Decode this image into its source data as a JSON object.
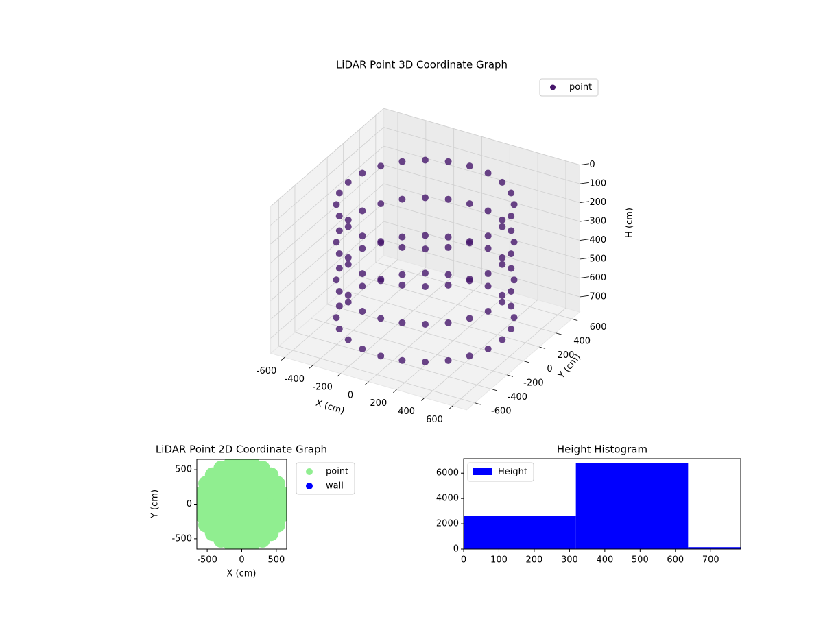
{
  "chart_data": [
    {
      "type": "scatter3d",
      "title": "LiDAR Point 3D Coordinate Graph",
      "xlabel": "X (cm)",
      "ylabel": "Y (cm)",
      "zlabel": "H (cm)",
      "legend": "point",
      "legend_loc": "upper right",
      "color": "#46166b",
      "grid": true,
      "xlim": [
        -700,
        700
      ],
      "ylim": [
        -700,
        700
      ],
      "zlim": [
        0,
        780
      ],
      "z_inverted": true,
      "xticks": [
        -600,
        -400,
        -200,
        0,
        200,
        400,
        600
      ],
      "yticks": [
        -600,
        -400,
        -200,
        0,
        200,
        400,
        600
      ],
      "zticks": [
        0,
        100,
        200,
        300,
        400,
        500,
        600,
        700
      ],
      "x": [
        550,
        531,
        476,
        389,
        275,
        142,
        0,
        -142,
        -275,
        -389,
        -476,
        -531,
        -550,
        -531,
        -476,
        -389,
        -275,
        -142,
        0,
        142,
        275,
        389,
        476,
        531,
        550,
        531,
        476,
        389,
        275,
        142,
        0,
        -142,
        -275,
        -389,
        -476,
        -531,
        -550,
        -531,
        -476,
        -389,
        -275,
        -142,
        0,
        142,
        275,
        389,
        476,
        531,
        550,
        531,
        476,
        389,
        275,
        142,
        0,
        -142,
        -275,
        -389,
        -476,
        -531,
        -550,
        -531,
        -476,
        -389,
        -275,
        -142,
        0,
        142,
        275,
        389,
        476,
        531,
        550,
        531,
        476,
        389,
        275,
        142,
        0,
        -142,
        -275,
        -389,
        -476,
        -531,
        -550,
        -531,
        -476,
        -389,
        -275,
        -142,
        0,
        142,
        275,
        389,
        476,
        531
      ],
      "y": [
        0,
        142,
        275,
        389,
        476,
        531,
        550,
        531,
        476,
        389,
        275,
        142,
        0,
        -142,
        -275,
        -389,
        -476,
        -531,
        -550,
        -531,
        -476,
        -389,
        -275,
        -142,
        0,
        142,
        275,
        389,
        476,
        531,
        550,
        531,
        476,
        389,
        275,
        142,
        0,
        -142,
        -275,
        -389,
        -476,
        -531,
        -550,
        -531,
        -476,
        -389,
        -275,
        -142,
        0,
        142,
        275,
        389,
        476,
        531,
        550,
        531,
        476,
        389,
        275,
        142,
        0,
        -142,
        -275,
        -389,
        -476,
        -531,
        -550,
        -531,
        -476,
        -389,
        -275,
        -142,
        0,
        142,
        275,
        389,
        476,
        531,
        550,
        531,
        476,
        389,
        275,
        142,
        0,
        -142,
        -275,
        -389,
        -476,
        -531,
        -550,
        -531,
        -476,
        -389,
        -275,
        -142
      ],
      "h": [
        100,
        100,
        100,
        100,
        100,
        100,
        100,
        100,
        100,
        100,
        100,
        100,
        100,
        100,
        100,
        100,
        100,
        100,
        100,
        100,
        100,
        100,
        100,
        100,
        300,
        300,
        300,
        300,
        300,
        300,
        300,
        300,
        300,
        300,
        300,
        300,
        300,
        300,
        300,
        300,
        300,
        300,
        300,
        300,
        300,
        300,
        300,
        300,
        500,
        500,
        500,
        500,
        500,
        500,
        500,
        500,
        500,
        500,
        500,
        500,
        500,
        500,
        500,
        500,
        500,
        500,
        500,
        500,
        500,
        500,
        500,
        500,
        700,
        700,
        700,
        700,
        700,
        700,
        700,
        700,
        700,
        700,
        700,
        700,
        700,
        700,
        700,
        700,
        700,
        700,
        700,
        700,
        700,
        700,
        700,
        700
      ]
    },
    {
      "type": "scatter",
      "title": "LiDAR Point 2D Coordinate Graph",
      "xlabel": "X (cm)",
      "ylabel": "Y (cm)",
      "legend_loc": "outside upper right",
      "xlim": [
        -650,
        650
      ],
      "ylim": [
        -650,
        650
      ],
      "xticks": [
        -500,
        0,
        500
      ],
      "yticks": [
        -500,
        0,
        500
      ],
      "series": [
        {
          "name": "point",
          "color": "#90ee90",
          "x": [
            600,
            580,
            520,
            424,
            300,
            155,
            0,
            -155,
            -300,
            -424,
            -520,
            -580,
            -600,
            -580,
            -520,
            -424,
            -300,
            -155,
            0,
            155,
            300,
            424,
            520,
            580,
            450,
            416,
            318,
            172,
            0,
            -172,
            -318,
            -416,
            -450,
            -416,
            -318,
            -172,
            0,
            172,
            318,
            416,
            300,
            260,
            150,
            0,
            -150,
            -260,
            -300,
            -260,
            -150,
            0,
            150,
            260,
            150,
            75,
            -75,
            -150,
            -75,
            75,
            0
          ],
          "y": [
            0,
            155,
            300,
            424,
            520,
            580,
            600,
            580,
            520,
            424,
            300,
            155,
            0,
            -155,
            -300,
            -424,
            -520,
            -580,
            -600,
            -580,
            -520,
            -424,
            -300,
            -155,
            0,
            172,
            318,
            416,
            450,
            416,
            318,
            172,
            0,
            -172,
            -318,
            -416,
            -450,
            -416,
            -318,
            -172,
            0,
            150,
            260,
            300,
            260,
            150,
            0,
            -150,
            -260,
            -300,
            -260,
            -150,
            0,
            130,
            130,
            0,
            -130,
            -130,
            0
          ]
        },
        {
          "name": "wall",
          "color": "#0000ff",
          "x": [],
          "y": []
        }
      ]
    },
    {
      "type": "histogram",
      "title": "Height Histogram",
      "legend": "Height",
      "legend_loc": "upper left",
      "color": "#0000ff",
      "bins": [
        0,
        318,
        636,
        785
      ],
      "counts": [
        2650,
        6800,
        150
      ],
      "xlim": [
        0,
        785
      ],
      "ylim": [
        0,
        7150
      ],
      "xticks": [
        0,
        100,
        200,
        300,
        400,
        500,
        600,
        700
      ],
      "yticks": [
        0,
        2000,
        4000,
        6000
      ]
    }
  ]
}
